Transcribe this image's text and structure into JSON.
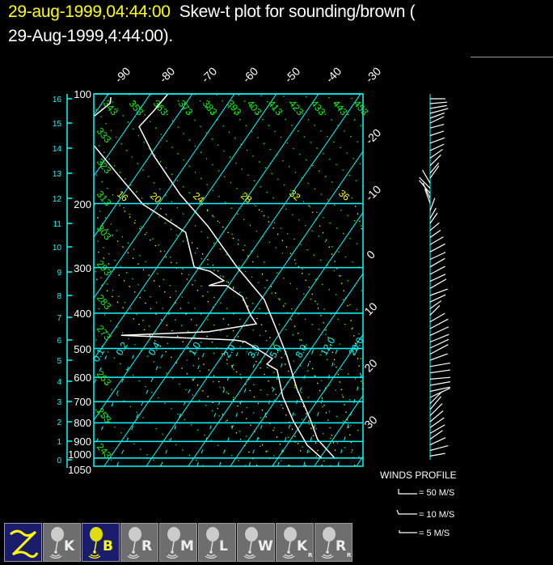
{
  "header": {
    "date_label": "29-aug-1999,04:44:00",
    "title_line1": "Skew-t plot for sounding/brown (",
    "title_line2": "29-Aug-1999,4:44:00)."
  },
  "colors": {
    "background": "#000000",
    "grid": "#00ffff",
    "dry_adiabat": "#00ff00",
    "moist_adiabat": "#ffff00",
    "sounding": "#ffffff",
    "date": "#ffff00",
    "toolbar_selected": "#1c1c6c",
    "toolbar_normal": "#6e6e6e"
  },
  "chart_data": {
    "type": "line",
    "subtype": "skew-t log-p",
    "title": "Skew-t plot for sounding/brown ( 29-Aug-1999,4:44:00).",
    "pressure_ticks": [
      "100",
      "200",
      "300",
      "400",
      "500",
      "600",
      "700",
      "800",
      "900",
      "1000",
      "1050"
    ],
    "height_km_ticks": [
      "0",
      "1",
      "2",
      "3",
      "4",
      "5",
      "6",
      "7",
      "8",
      "9",
      "10",
      "11",
      "12",
      "13",
      "14",
      "15",
      "16"
    ],
    "isotherm_labels": [
      "-90",
      "-80",
      "-70",
      "-60",
      "-50",
      "-40",
      "-30",
      "-20",
      "-10",
      "0",
      "10",
      "20",
      "30"
    ],
    "dry_adiabat_labels": [
      "343",
      "353",
      "363",
      "373",
      "383",
      "393",
      "403",
      "413",
      "423",
      "433",
      "443",
      "453",
      "333",
      "323",
      "313",
      "303",
      "293",
      "283",
      "273",
      "263",
      "253",
      "243"
    ],
    "moist_adiabat_labels": [
      "16",
      "20",
      "24",
      "28",
      "32",
      "36"
    ],
    "mixing_ratio_labels": [
      "0.1",
      "0.2",
      "0.4",
      "1.0",
      "2.0",
      "3.0",
      "5.0",
      "8.0",
      "12.0",
      "20.0"
    ],
    "ylim_hpa": [
      1050,
      100
    ],
    "temperature": {
      "pressure": [
        1000,
        889,
        778,
        644,
        525,
        450,
        367,
        299,
        231,
        189,
        148,
        123,
        111,
        100
      ],
      "t": [
        23.5,
        16.4,
        11.1,
        3.1,
        -4.5,
        -10.8,
        -19.2,
        -31.0,
        -44.6,
        -56.4,
        -69.0,
        -77.3,
        -76.4,
        -75.8
      ]
    },
    "dewpoint": {
      "pressure": [
        1000,
        922,
        791,
        678,
        573,
        552,
        533,
        499,
        479,
        474,
        460,
        450,
        428,
        406,
        361,
        336,
        336,
        326,
        307,
        299,
        240,
        212,
        201,
        164,
        139
      ],
      "t": [
        20.4,
        14.9,
        7.6,
        1.1,
        -4.6,
        -8.0,
        -7.6,
        -13.2,
        -16.9,
        -19.7,
        -47.4,
        -27.3,
        -17.1,
        -19.8,
        -24.8,
        -30.5,
        -34.7,
        -31.9,
        -36.7,
        -41.2,
        -48.9,
        -59.2,
        -63.7,
        -75.4,
        -84.8
      ]
    },
    "dewpoint_upper": {
      "pressure": [
        115,
        106,
        102
      ],
      "t": [
        -89.7,
        -88.0,
        -88.9
      ]
    },
    "winds": {
      "fields": [
        "height_km",
        "direction_deg",
        "speed_ms"
      ],
      "values": [
        [
          16.0,
          90,
          18
        ],
        [
          15.8,
          85,
          20
        ],
        [
          15.6,
          80,
          20
        ],
        [
          15.4,
          75,
          22
        ],
        [
          15.2,
          70,
          18
        ],
        [
          15.0,
          65,
          18
        ],
        [
          14.8,
          75,
          17
        ],
        [
          14.5,
          72,
          17
        ],
        [
          14.2,
          70,
          18
        ],
        [
          13.9,
          65,
          18
        ],
        [
          13.6,
          55,
          18
        ],
        [
          13.3,
          45,
          18
        ],
        [
          13.0,
          40,
          16
        ],
        [
          12.8,
          35,
          18
        ],
        [
          12.6,
          330,
          18
        ],
        [
          12.4,
          315,
          18
        ],
        [
          12.2,
          320,
          20
        ],
        [
          12.0,
          335,
          20
        ],
        [
          11.8,
          340,
          18
        ],
        [
          11.5,
          20,
          16
        ],
        [
          11.2,
          30,
          14
        ],
        [
          11.0,
          35,
          15
        ],
        [
          10.7,
          50,
          14
        ],
        [
          10.4,
          55,
          15
        ],
        [
          10.1,
          60,
          18
        ],
        [
          9.8,
          62,
          20
        ],
        [
          9.5,
          65,
          20
        ],
        [
          9.2,
          60,
          20
        ],
        [
          8.9,
          62,
          20
        ],
        [
          8.6,
          65,
          20
        ],
        [
          8.3,
          60,
          22
        ],
        [
          8.0,
          70,
          22
        ],
        [
          7.7,
          65,
          20
        ],
        [
          7.4,
          55,
          16
        ],
        [
          7.1,
          45,
          16
        ],
        [
          6.8,
          60,
          20
        ],
        [
          6.5,
          62,
          24
        ],
        [
          6.2,
          65,
          24
        ],
        [
          5.9,
          68,
          24
        ],
        [
          5.6,
          65,
          24
        ],
        [
          5.3,
          62,
          24
        ],
        [
          5.0,
          70,
          22
        ],
        [
          4.7,
          80,
          24
        ],
        [
          4.4,
          82,
          24
        ],
        [
          4.1,
          85,
          24
        ],
        [
          3.8,
          80,
          24
        ],
        [
          3.5,
          78,
          24
        ],
        [
          3.2,
          65,
          26
        ],
        [
          2.9,
          45,
          20
        ],
        [
          2.6,
          40,
          20
        ],
        [
          2.3,
          45,
          20
        ],
        [
          2.0,
          50,
          20
        ],
        [
          1.7,
          55,
          20
        ],
        [
          1.4,
          60,
          20
        ],
        [
          1.1,
          55,
          18
        ],
        [
          0.8,
          65,
          20
        ],
        [
          0.5,
          75,
          22
        ],
        [
          0.2,
          80,
          18
        ]
      ]
    }
  },
  "wind_legend": {
    "title": "WINDS PROFILE",
    "items": [
      {
        "label": "= 50 M/S"
      },
      {
        "label": "= 10 M/S"
      },
      {
        "label": "= 5 M/S"
      }
    ]
  },
  "toolbar": {
    "buttons": [
      {
        "letter": "Z",
        "icon": "zoom-z-icon",
        "selected": true
      },
      {
        "letter": "K",
        "icon": "balloon-icon",
        "selected": false
      },
      {
        "letter": "B",
        "icon": "balloon-icon",
        "selected": true
      },
      {
        "letter": "R",
        "icon": "balloon-icon",
        "selected": false
      },
      {
        "letter": "M",
        "icon": "balloon-icon",
        "selected": false
      },
      {
        "letter": "L",
        "icon": "balloon-icon",
        "selected": false
      },
      {
        "letter": "W",
        "icon": "balloon-icon",
        "selected": false
      },
      {
        "letter": "K",
        "sub": "R",
        "icon": "balloon-icon",
        "selected": false
      },
      {
        "letter": "R",
        "sub": "R",
        "icon": "balloon-icon",
        "selected": false
      }
    ]
  }
}
